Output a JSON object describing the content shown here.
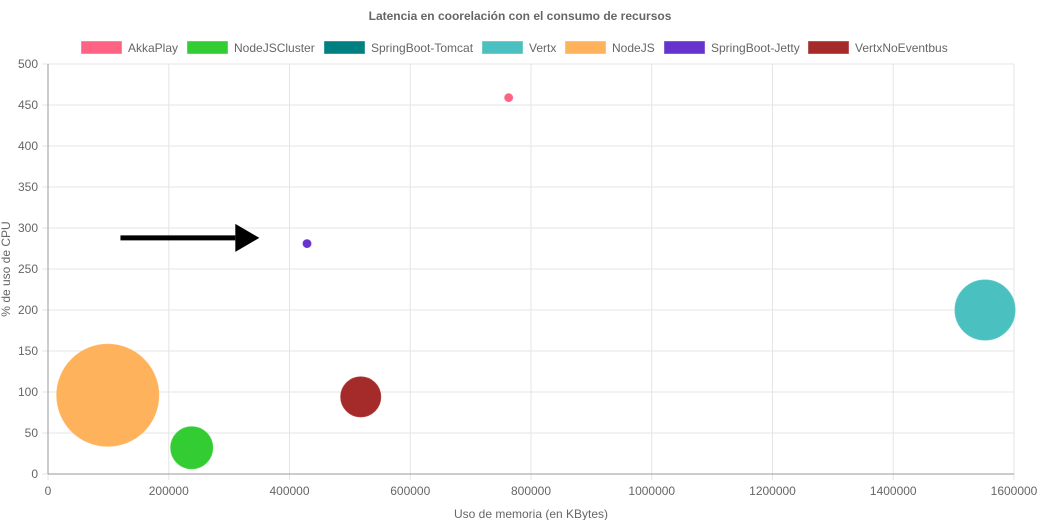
{
  "chart_data": {
    "type": "bubble",
    "title": "Latencia en coorelación con el consumo de recursos",
    "xlabel": "Uso de memoria (en KBytes)",
    "ylabel": "% de uso de CPU",
    "xlim": [
      0,
      1600000
    ],
    "ylim": [
      0,
      500
    ],
    "x_ticks": [
      0,
      200000,
      400000,
      600000,
      800000,
      1000000,
      1200000,
      1400000,
      1600000
    ],
    "y_ticks": [
      0,
      50,
      100,
      150,
      200,
      250,
      300,
      350,
      400,
      450,
      500
    ],
    "grid": true,
    "legend_position": "top",
    "series": [
      {
        "name": "AkkaPlay",
        "color": "#ff6384",
        "x": 763000,
        "y": 459,
        "r": 4
      },
      {
        "name": "NodeJSCluster",
        "color": "#33cc33",
        "x": 238000,
        "y": 32,
        "r": 21
      },
      {
        "name": "SpringBoot-Tomcat",
        "color": "#008080",
        "x": null,
        "y": null,
        "r": 0
      },
      {
        "name": "Vertx",
        "color": "#4bc0c0",
        "x": 1552000,
        "y": 200,
        "r": 30
      },
      {
        "name": "NodeJS",
        "color": "#ffb25c",
        "x": 99000,
        "y": 96,
        "r": 51
      },
      {
        "name": "SpringBoot-Jetty",
        "color": "#6633cc",
        "x": 429000,
        "y": 281,
        "r": 4
      },
      {
        "name": "VertxNoEventbus",
        "color": "#a52a2a",
        "x": 518000,
        "y": 94,
        "r": 20
      }
    ],
    "annotation": {
      "type": "arrow",
      "color": "#000000",
      "from": [
        120000,
        288
      ],
      "to": [
        350000,
        288
      ]
    }
  }
}
